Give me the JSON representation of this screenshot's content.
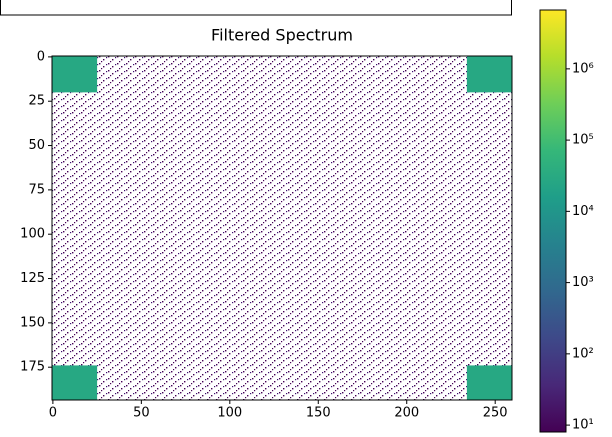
{
  "chart_data": {
    "type": "heatmap",
    "title": "Filtered Spectrum",
    "colormap": "viridis",
    "color_scale": "log",
    "xlim": [
      -0.5,
      259.5
    ],
    "ylim": [
      193.5,
      -0.5
    ],
    "xticks": [
      0,
      50,
      100,
      150,
      200,
      250
    ],
    "yticks": [
      0,
      25,
      50,
      75,
      100,
      125,
      150,
      175
    ],
    "regions": [
      {
        "x": [
          -0.5,
          259.5
        ],
        "y": [
          -0.5,
          193.5
        ],
        "value": 10
      },
      {
        "x": [
          -0.5,
          25
        ],
        "y": [
          -0.5,
          20
        ],
        "value": 28000
      },
      {
        "x": [
          234,
          259.5
        ],
        "y": [
          -0.5,
          20
        ],
        "value": 28000
      },
      {
        "x": [
          -0.5,
          25
        ],
        "y": [
          174,
          193.5
        ],
        "value": 28000
      },
      {
        "x": [
          234,
          259.5
        ],
        "y": [
          174,
          193.5
        ],
        "value": 28000
      }
    ],
    "clim": [
      8,
      6700000
    ],
    "cticks": [
      {
        "value": 10,
        "label": "10¹"
      },
      {
        "value": 100,
        "label": "10²"
      },
      {
        "value": 1000,
        "label": "10³"
      },
      {
        "value": 10000,
        "label": "10⁴"
      },
      {
        "value": 100000,
        "label": "10⁵"
      },
      {
        "value": 1000000,
        "label": "10⁶"
      }
    ]
  }
}
